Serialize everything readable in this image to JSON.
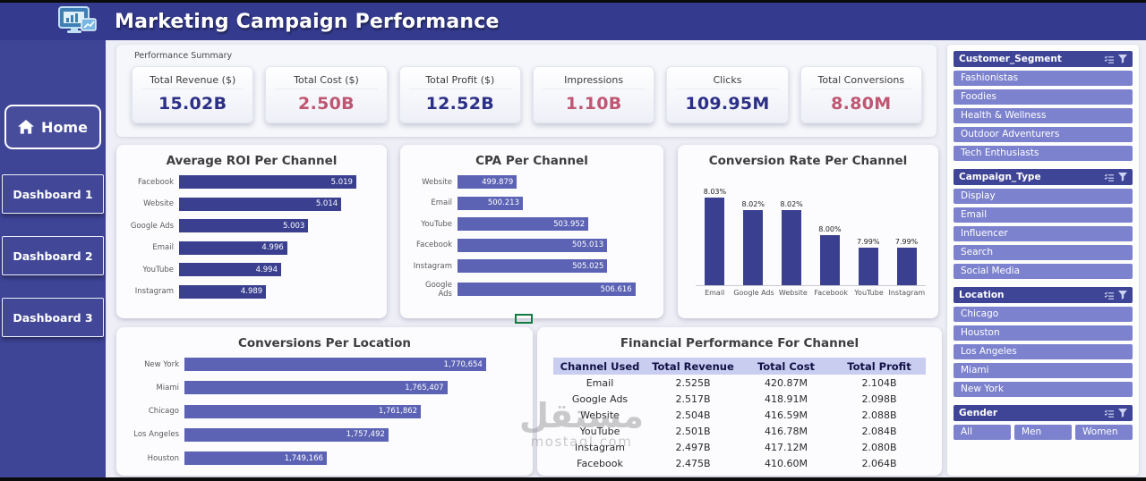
{
  "header": {
    "title": "Marketing Campaign Performance"
  },
  "icons": {
    "logo": "dashboard-monitor-icon",
    "home": "home-icon",
    "slicer_header": [
      "select-items-icon",
      "filter-icon"
    ]
  },
  "sidebar": {
    "home_label": "Home",
    "buttons": [
      "Dashboard 1",
      "Dashboard 2",
      "Dashboard 3"
    ]
  },
  "summary": {
    "label": "Performance Summary",
    "cards": [
      {
        "label": "Total Revenue ($)",
        "value": "15.02B",
        "color": "#2b2f86"
      },
      {
        "label": "Total Cost ($)",
        "value": "2.50B",
        "color": "#bf5672"
      },
      {
        "label": "Total Profit ($)",
        "value": "12.52B",
        "color": "#2b2f86"
      },
      {
        "label": "Impressions",
        "value": "1.10B",
        "color": "#bf5672"
      },
      {
        "label": "Clicks",
        "value": "109.95M",
        "color": "#2b2f86"
      },
      {
        "label": "Total Conversions",
        "value": "8.80M",
        "color": "#bf5672"
      }
    ]
  },
  "chart_data": [
    {
      "type": "bar",
      "orientation": "horizontal",
      "title": "Average ROI Per Channel",
      "categories": [
        "Facebook",
        "Website",
        "Google Ads",
        "Email",
        "YouTube",
        "Instagram"
      ],
      "values": [
        5.019,
        5.014,
        5.003,
        4.996,
        4.994,
        4.989
      ],
      "labels": [
        "5.019",
        "5.014",
        "5.003",
        "4.996",
        "4.994",
        "4.989"
      ],
      "axis_min": 4.96,
      "axis_max": 5.025,
      "bar_color": "#3a408f",
      "grid": false,
      "value_labels": "inside-end"
    },
    {
      "type": "bar",
      "orientation": "horizontal",
      "title": "CPA Per Channel",
      "categories": [
        "Website",
        "Email",
        "YouTube",
        "Facebook",
        "Instagram",
        "Google Ads"
      ],
      "values": [
        499.879,
        500.213,
        503.952,
        505.013,
        505.025,
        506.616
      ],
      "labels": [
        "499.879",
        "500.213",
        "503.952",
        "505.013",
        "505.025",
        "506.616"
      ],
      "axis_min": 496.5,
      "axis_max": 507.5,
      "bar_color": "#5c63b4",
      "grid": false,
      "value_labels": "inside-end"
    },
    {
      "type": "bar",
      "orientation": "vertical",
      "title": "Conversion Rate Per Channel",
      "categories": [
        "Email",
        "Google Ads",
        "Website",
        "Facebook",
        "YouTube",
        "Instagram"
      ],
      "values": [
        8.03,
        8.02,
        8.02,
        8.0,
        7.99,
        7.99
      ],
      "labels": [
        "8.03%",
        "8.02%",
        "8.02%",
        "8.00%",
        "7.99%",
        "7.99%"
      ],
      "axis_min": 7.96,
      "axis_max": 8.04,
      "bar_color": "#3a408f",
      "grid": false,
      "value_labels": "above"
    },
    {
      "type": "bar",
      "orientation": "horizontal",
      "title": "Conversions Per Location",
      "categories": [
        "New York",
        "Miami",
        "Chicago",
        "Los Angeles",
        "Houston"
      ],
      "values": [
        1770654,
        1765407,
        1761862,
        1757492,
        1749166
      ],
      "labels": [
        "1,770,654",
        "1,765,407",
        "1,761,862",
        "1,757,492",
        "1,749,166"
      ],
      "axis_min": 1730000,
      "axis_max": 1775000,
      "bar_color": "#5c63b4",
      "grid": false,
      "value_labels": "inside-end"
    }
  ],
  "table": {
    "title": "Financial Performance For Channel",
    "columns": [
      "Channel Used",
      "Total Revenue",
      "Total Cost",
      "Total Profit"
    ],
    "rows": [
      [
        "Email",
        "2.525B",
        "420.87M",
        "2.104B"
      ],
      [
        "Google Ads",
        "2.517B",
        "418.91M",
        "2.098B"
      ],
      [
        "Website",
        "2.504B",
        "416.59M",
        "2.088B"
      ],
      [
        "YouTube",
        "2.501B",
        "416.78M",
        "2.084B"
      ],
      [
        "Instagram",
        "2.497B",
        "417.12M",
        "2.080B"
      ],
      [
        "Facebook",
        "2.475B",
        "410.60M",
        "2.064B"
      ]
    ]
  },
  "slicers": [
    {
      "title": "Customer_Segment",
      "layout": "column",
      "items": [
        "Fashionistas",
        "Foodies",
        "Health & Wellness",
        "Outdoor Adventurers",
        "Tech Enthusiasts"
      ]
    },
    {
      "title": "Campaign_Type",
      "layout": "column",
      "items": [
        "Display",
        "Email",
        "Influencer",
        "Search",
        "Social Media"
      ]
    },
    {
      "title": "Location",
      "layout": "column",
      "items": [
        "Chicago",
        "Houston",
        "Los Angeles",
        "Miami",
        "New York"
      ]
    },
    {
      "title": "Gender",
      "layout": "row",
      "items": [
        "All",
        "Men",
        "Women"
      ]
    }
  ],
  "watermark": {
    "text_ar": "مستقل",
    "text_en": "mostaql.com"
  }
}
